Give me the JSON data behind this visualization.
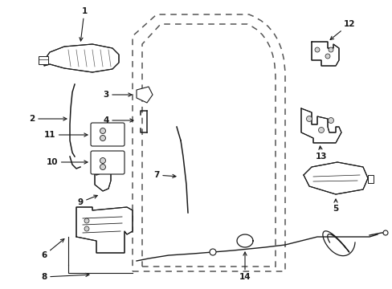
{
  "bg_color": "#ffffff",
  "figsize": [
    4.89,
    3.6
  ],
  "dpi": 100
}
